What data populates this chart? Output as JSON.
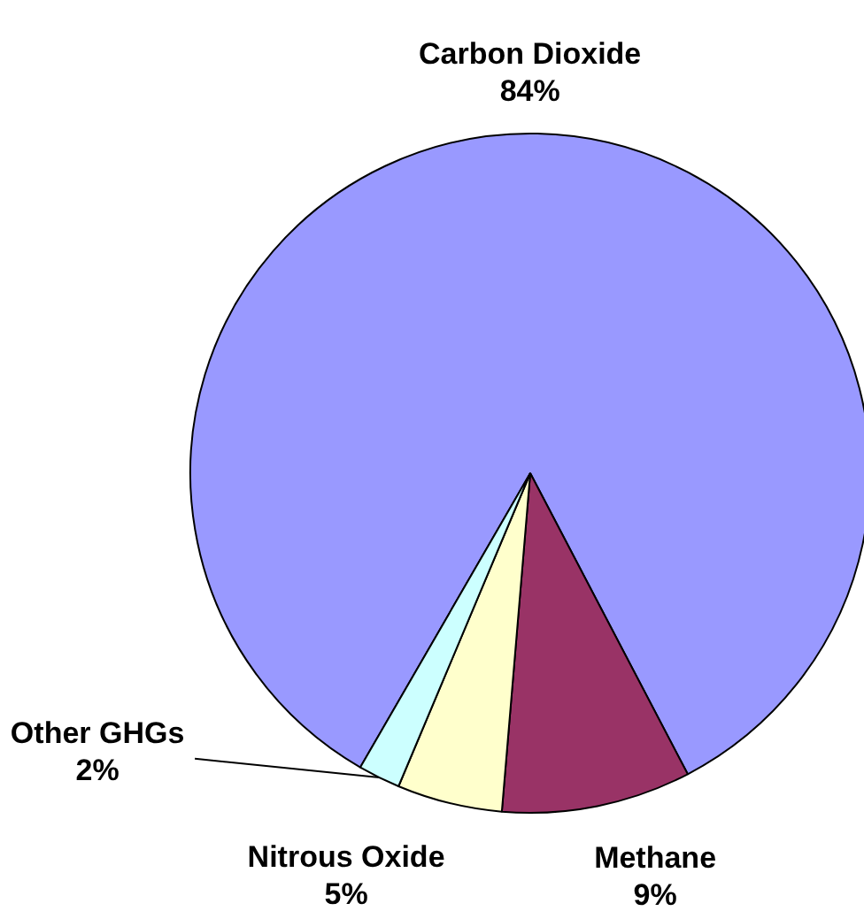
{
  "chart_data": {
    "type": "pie",
    "categories": [
      "Carbon Dioxide",
      "Methane",
      "Nitrous Oxide",
      "Other GHGs"
    ],
    "values": [
      84,
      9,
      5,
      2
    ],
    "colors": [
      "#9999ff",
      "#993366",
      "#ffffcc",
      "#ccffff"
    ],
    "value_labels": [
      "84%",
      "9%",
      "5%",
      "2%"
    ]
  }
}
